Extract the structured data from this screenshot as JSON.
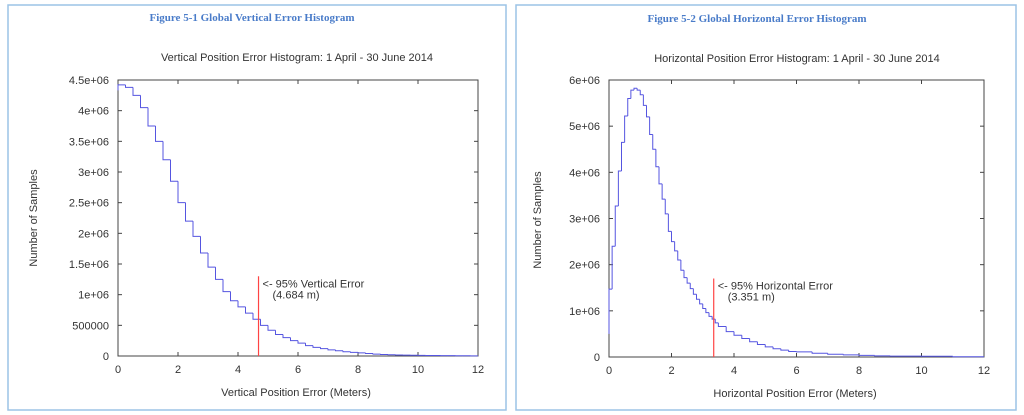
{
  "colors": {
    "histogram": "#5555e0",
    "marker": "#ff4444",
    "caption": "#4a7cc9",
    "panel_border": "#9cc3e6"
  },
  "chart_data": [
    {
      "type": "bar",
      "style": "step histogram",
      "caption": "Figure 5-1 Global Vertical Error Histogram",
      "title": "Vertical Position Error Histogram: 1 April - 30 June 2014",
      "xlabel": "Vertical Position Error (Meters)",
      "ylabel": "Number of Samples",
      "xlim": [
        0,
        12
      ],
      "ylim": [
        0,
        4500000
      ],
      "xticks": [
        "0",
        "2",
        "4",
        "6",
        "8",
        "10",
        "12"
      ],
      "yticks": [
        "0",
        "500000",
        "1e+06",
        "1.5e+06",
        "2e+06",
        "2.5e+06",
        "3e+06",
        "3.5e+06",
        "4e+06",
        "4.5e+06"
      ],
      "grid": false,
      "bin_start": [
        0,
        0.25,
        0.5,
        0.75,
        1,
        1.25,
        1.5,
        1.75,
        2,
        2.25,
        2.5,
        2.75,
        3,
        3.25,
        3.5,
        3.75,
        4,
        4.25,
        4.5,
        4.75,
        5,
        5.25,
        5.5,
        5.75,
        6,
        6.25,
        6.5,
        6.75,
        7,
        7.25,
        7.5,
        7.75,
        8,
        8.25,
        8.5,
        8.75,
        9,
        9.25,
        9.5,
        9.75,
        10,
        10.25,
        10.5,
        10.75,
        11,
        11.25,
        11.5,
        11.75
      ],
      "values": [
        4420000,
        4380000,
        4250000,
        4050000,
        3750000,
        3500000,
        3200000,
        2850000,
        2500000,
        2200000,
        1950000,
        1680000,
        1450000,
        1250000,
        1050000,
        900000,
        800000,
        700000,
        600000,
        500000,
        420000,
        350000,
        300000,
        250000,
        210000,
        170000,
        140000,
        120000,
        100000,
        85000,
        70000,
        60000,
        50000,
        40000,
        30000,
        25000,
        20000,
        17000,
        14000,
        12000,
        10000,
        9000,
        8000,
        7000,
        6000,
        5000,
        4000,
        3000
      ],
      "marker": {
        "x": 4.684,
        "label_line1": "<- 95% Vertical Error",
        "label_line2": "(4.684 m)"
      }
    },
    {
      "type": "bar",
      "style": "step histogram",
      "caption": "Figure 5-2 Global Horizontal Error Histogram",
      "title": "Horizontal Position Error Histogram: 1 April - 30 June 2014",
      "xlabel": "Horizontal Position Error (Meters)",
      "ylabel": "Number of Samples",
      "xlim": [
        0,
        12
      ],
      "ylim": [
        0,
        6000000
      ],
      "xticks": [
        "0",
        "2",
        "4",
        "6",
        "8",
        "10",
        "12"
      ],
      "yticks": [
        "0",
        "1e+06",
        "2e+06",
        "3e+06",
        "4e+06",
        "5e+06",
        "6e+06"
      ],
      "grid": false,
      "bin_start": [
        0,
        0.1,
        0.2,
        0.3,
        0.4,
        0.5,
        0.6,
        0.7,
        0.8,
        0.9,
        1.0,
        1.1,
        1.2,
        1.3,
        1.4,
        1.5,
        1.6,
        1.7,
        1.8,
        1.9,
        2.0,
        2.1,
        2.2,
        2.3,
        2.4,
        2.5,
        2.6,
        2.7,
        2.8,
        2.9,
        3.0,
        3.1,
        3.2,
        3.3,
        3.4,
        3.5,
        3.75,
        4,
        4.25,
        4.5,
        4.75,
        5,
        5.25,
        5.5,
        5.75,
        6,
        6.5,
        7,
        7.5,
        8,
        8.5,
        9,
        10,
        11
      ],
      "values": [
        1470000,
        2400000,
        3270000,
        4030000,
        4650000,
        5220000,
        5600000,
        5780000,
        5820000,
        5780000,
        5680000,
        5450000,
        5200000,
        4820000,
        4500000,
        4120000,
        3750000,
        3420000,
        3100000,
        2720000,
        2500000,
        2300000,
        2100000,
        1880000,
        1720000,
        1600000,
        1480000,
        1360000,
        1250000,
        1150000,
        1050000,
        960000,
        880000,
        820000,
        740000,
        660000,
        550000,
        470000,
        400000,
        330000,
        270000,
        220000,
        180000,
        150000,
        120000,
        110000,
        80000,
        60000,
        45000,
        35000,
        25000,
        20000,
        15000,
        5000
      ],
      "marker": {
        "x": 3.351,
        "label_line1": "<- 95% Horizontal Error",
        "label_line2": "(3.351 m)"
      }
    }
  ]
}
